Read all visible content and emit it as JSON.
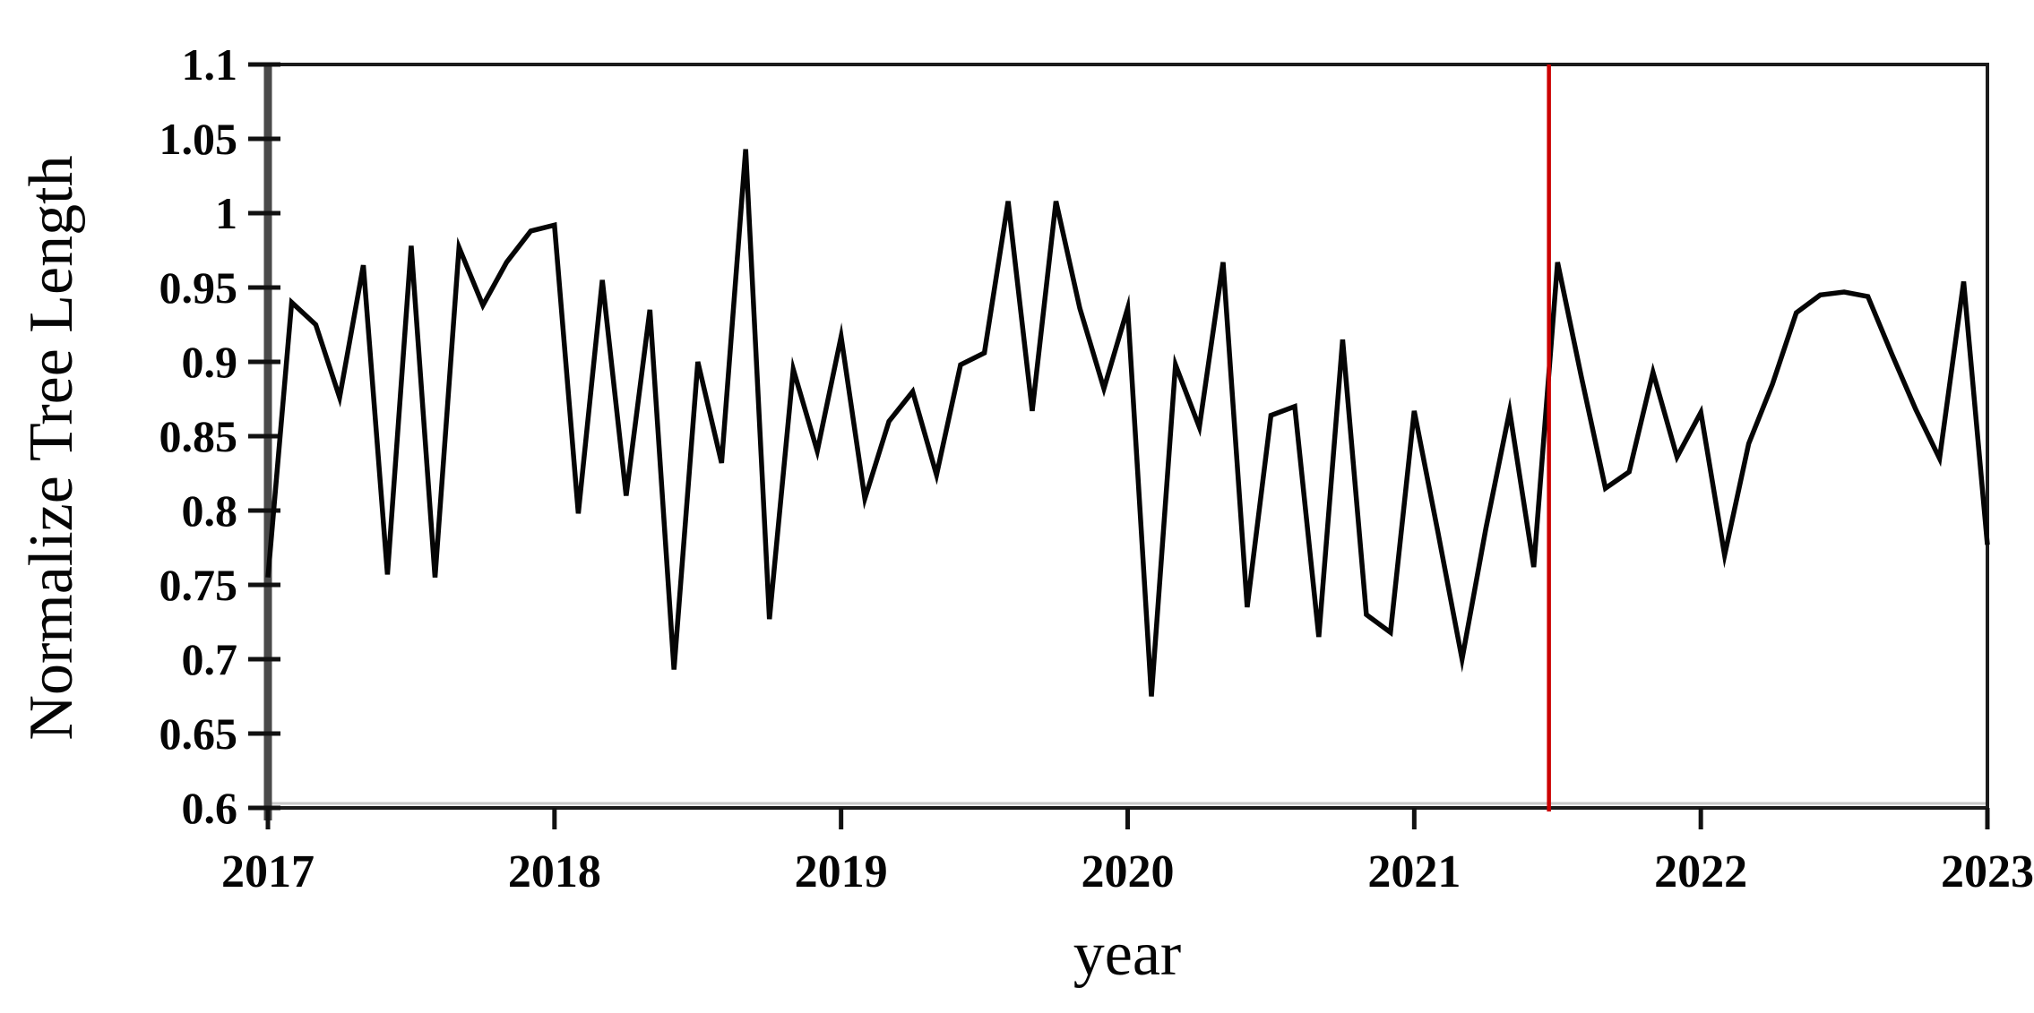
{
  "figure": {
    "background": "#ffffff",
    "frame_color": "#1b1b1b",
    "left_spine_color": "#4a4a4a",
    "tick_color": "#111111",
    "axis_shadow_color": "#c9c9c9",
    "series_line_color": "#050505",
    "event_line_color": "#cc0000",
    "text_color": "#050505"
  },
  "chart_data": {
    "type": "line",
    "title": "",
    "xlabel": "year",
    "ylabel": "Normalize Tree Length",
    "xlim": [
      2017,
      2023
    ],
    "ylim": [
      0.6,
      1.1
    ],
    "grid": false,
    "legend_position": "none",
    "x_tick_values": [
      2017,
      2018,
      2019,
      2020,
      2021,
      2022,
      2023
    ],
    "x_tick_labels": [
      "2017",
      "2018",
      "2019",
      "2020",
      "2021",
      "2022",
      "2023"
    ],
    "y_tick_values": [
      1.1,
      1.05,
      1.0,
      0.95,
      0.9,
      0.85,
      0.8,
      0.75,
      0.7,
      0.65,
      0.6
    ],
    "y_tick_labels": [
      "1.1",
      "1.05",
      "1",
      "0.95",
      "0.9",
      "0.85",
      "0.8",
      "0.75",
      "0.7",
      "0.65",
      "0.6"
    ],
    "annotations": [
      {
        "type": "vline",
        "x": 2021.47,
        "color": "#cc0000",
        "label": ""
      }
    ],
    "series": [
      {
        "name": "normalized tree length",
        "color": "#050505",
        "x": [
          2017.0,
          2017.083,
          2017.167,
          2017.25,
          2017.333,
          2017.417,
          2017.5,
          2017.583,
          2017.667,
          2017.75,
          2017.833,
          2017.917,
          2018.0,
          2018.083,
          2018.167,
          2018.25,
          2018.333,
          2018.417,
          2018.5,
          2018.583,
          2018.667,
          2018.75,
          2018.833,
          2018.917,
          2019.0,
          2019.083,
          2019.167,
          2019.25,
          2019.333,
          2019.417,
          2019.5,
          2019.583,
          2019.667,
          2019.75,
          2019.833,
          2019.917,
          2020.0,
          2020.083,
          2020.167,
          2020.25,
          2020.333,
          2020.417,
          2020.5,
          2020.583,
          2020.667,
          2020.75,
          2020.833,
          2020.917,
          2021.0,
          2021.083,
          2021.167,
          2021.25,
          2021.333,
          2021.417,
          2021.5,
          2021.583,
          2021.667,
          2021.75,
          2021.833,
          2021.917,
          2022.0,
          2022.083,
          2022.167,
          2022.25,
          2022.333,
          2022.417,
          2022.5,
          2022.583,
          2022.667,
          2022.75,
          2022.833,
          2022.917,
          2023.0
        ],
        "y": [
          0.755,
          0.94,
          0.925,
          0.876,
          0.965,
          0.757,
          0.978,
          0.755,
          0.977,
          0.938,
          0.967,
          0.988,
          0.992,
          0.798,
          0.955,
          0.81,
          0.935,
          0.693,
          0.9,
          0.832,
          1.043,
          0.727,
          0.895,
          0.84,
          0.917,
          0.808,
          0.86,
          0.88,
          0.824,
          0.898,
          0.906,
          1.008,
          0.867,
          1.008,
          0.936,
          0.882,
          0.936,
          0.675,
          0.898,
          0.856,
          0.967,
          0.735,
          0.864,
          0.87,
          0.715,
          0.915,
          0.73,
          0.718,
          0.867,
          0.785,
          0.7,
          0.788,
          0.867,
          0.762,
          0.967,
          0.89,
          0.815,
          0.826,
          0.893,
          0.836,
          0.866,
          0.77,
          0.845,
          0.885,
          0.933,
          0.945,
          0.947,
          0.944,
          0.905,
          0.868,
          0.835,
          0.954,
          0.777
        ]
      }
    ]
  }
}
